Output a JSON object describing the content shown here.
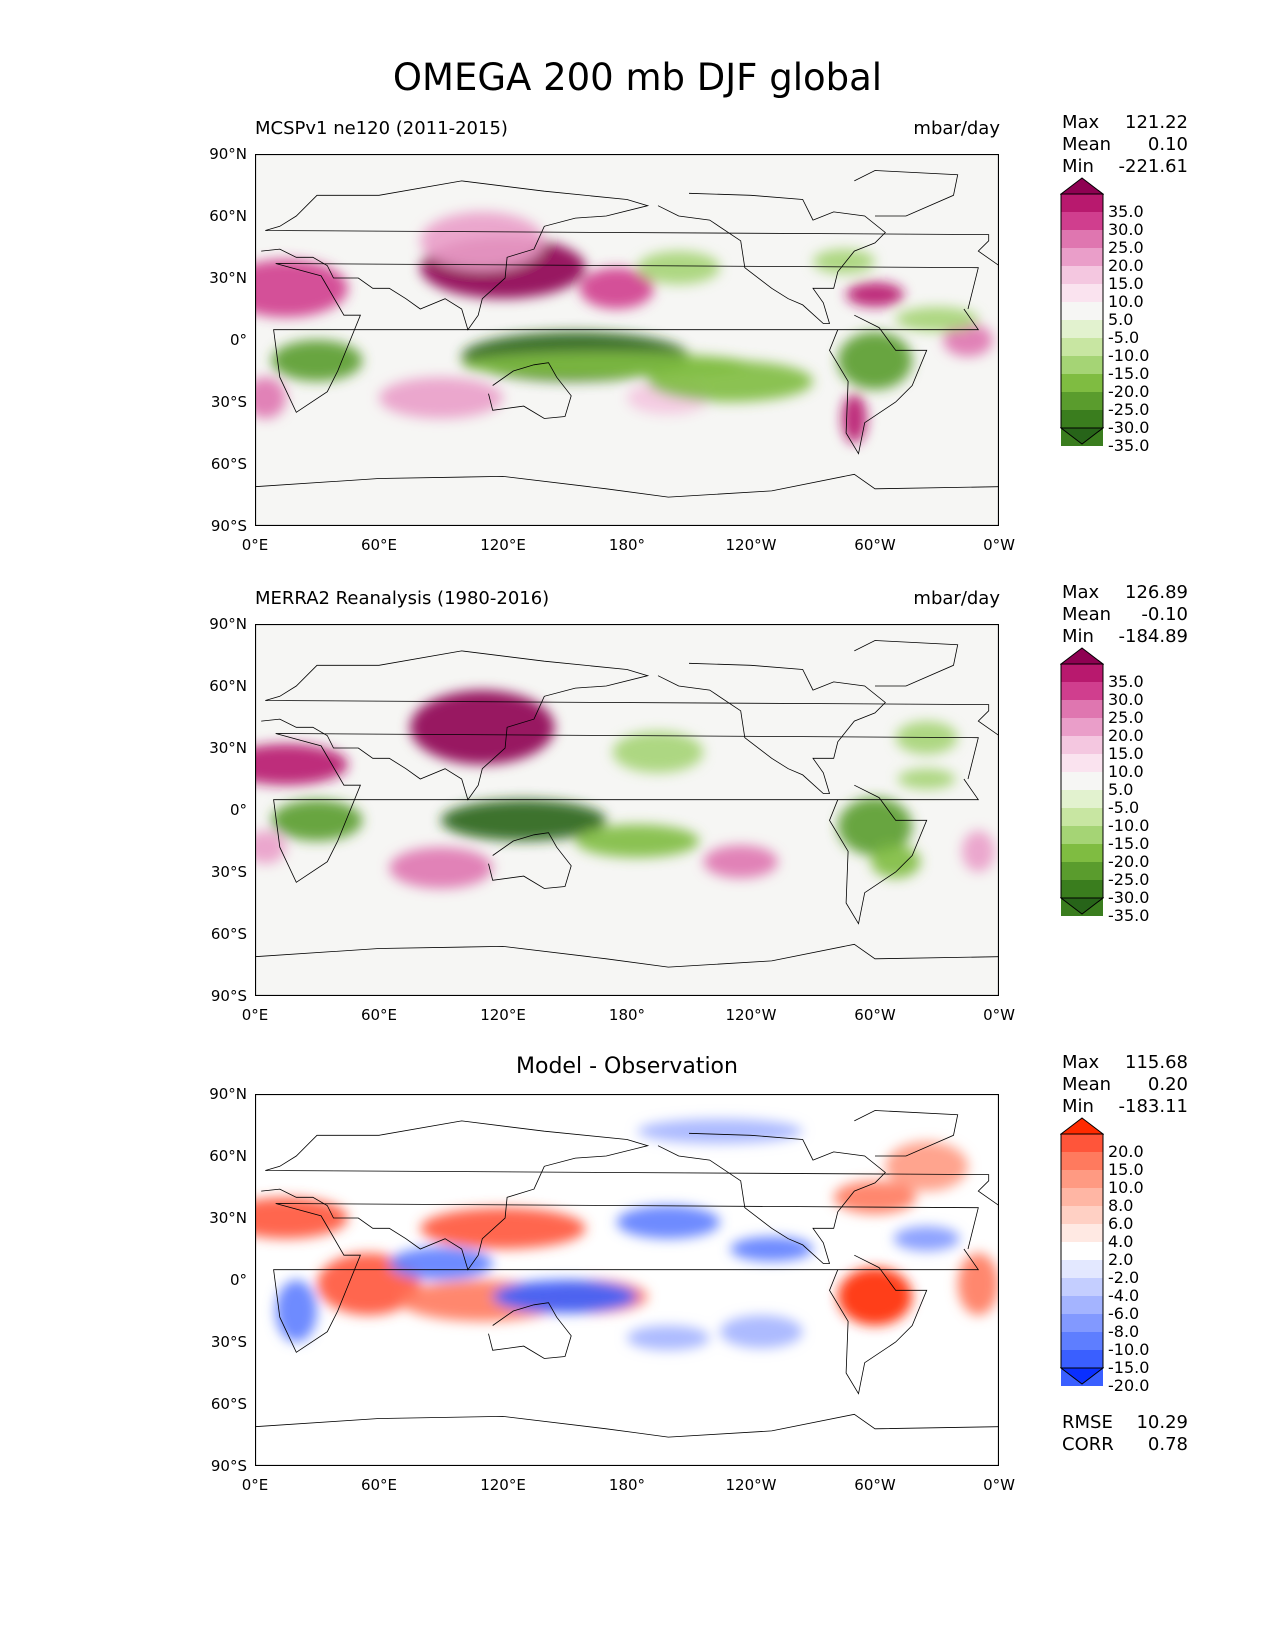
{
  "figure": {
    "title": "OMEGA 200 mb DJF global"
  },
  "axes": {
    "lat_ticks": [
      "90°N",
      "60°N",
      "30°N",
      "0°",
      "30°S",
      "60°S",
      "90°S"
    ],
    "lon_ticks": [
      "0°E",
      "60°E",
      "120°E",
      "180°",
      "120°W",
      "60°W",
      "0°W"
    ]
  },
  "panels": [
    {
      "title_left": "MCSPv1 ne120 (2011-2015)",
      "title_right": "mbar/day",
      "title_center": "",
      "stats": {
        "max_label": "Max",
        "max": "121.22",
        "mean_label": "Mean",
        "mean": "0.10",
        "min_label": "Min",
        "min": "-221.61"
      },
      "colorbar_levels": [
        "35.0",
        "30.0",
        "25.0",
        "20.0",
        "15.0",
        "10.0",
        "5.0",
        "-5.0",
        "-10.0",
        "-15.0",
        "-20.0",
        "-25.0",
        "-30.0",
        "-35.0"
      ],
      "colormap": "PiYG_r"
    },
    {
      "title_left": "MERRA2 Reanalysis (1980-2016)",
      "title_right": "mbar/day",
      "title_center": "",
      "stats": {
        "max_label": "Max",
        "max": "126.89",
        "mean_label": "Mean",
        "mean": "-0.10",
        "min_label": "Min",
        "min": "-184.89"
      },
      "colorbar_levels": [
        "35.0",
        "30.0",
        "25.0",
        "20.0",
        "15.0",
        "10.0",
        "5.0",
        "-5.0",
        "-10.0",
        "-15.0",
        "-20.0",
        "-25.0",
        "-30.0",
        "-35.0"
      ],
      "colormap": "PiYG_r"
    },
    {
      "title_left": "",
      "title_right": "",
      "title_center": "Model - Observation",
      "stats": {
        "max_label": "Max",
        "max": "115.68",
        "mean_label": "Mean",
        "mean": "0.20",
        "min_label": "Min",
        "min": "-183.11"
      },
      "colorbar_levels": [
        "20.0",
        "15.0",
        "10.0",
        "8.0",
        "6.0",
        "4.0",
        "2.0",
        "-2.0",
        "-4.0",
        "-6.0",
        "-8.0",
        "-10.0",
        "-15.0",
        "-20.0"
      ],
      "colormap": "bwr",
      "metrics": {
        "rmse_label": "RMSE",
        "rmse": "10.29",
        "corr_label": "CORR",
        "corr": "0.78"
      }
    }
  ],
  "chart_data": [
    {
      "type": "heatmap",
      "title": "MCSPv1 ne120 (2011-2015)",
      "units": "mbar/day",
      "xlim": [
        0,
        360
      ],
      "ylim": [
        -90,
        90
      ],
      "levels": [
        -35,
        -30,
        -25,
        -20,
        -15,
        -10,
        -5,
        5,
        10,
        15,
        20,
        25,
        30,
        35
      ],
      "stats": {
        "max": 121.22,
        "mean": 0.1,
        "min": -221.61
      }
    },
    {
      "type": "heatmap",
      "title": "MERRA2 Reanalysis (1980-2016)",
      "units": "mbar/day",
      "xlim": [
        0,
        360
      ],
      "ylim": [
        -90,
        90
      ],
      "levels": [
        -35,
        -30,
        -25,
        -20,
        -15,
        -10,
        -5,
        5,
        10,
        15,
        20,
        25,
        30,
        35
      ],
      "stats": {
        "max": 126.89,
        "mean": -0.1,
        "min": -184.89
      }
    },
    {
      "type": "heatmap",
      "title": "Model - Observation",
      "xlim": [
        0,
        360
      ],
      "ylim": [
        -90,
        90
      ],
      "levels": [
        -20,
        -15,
        -10,
        -8,
        -6,
        -4,
        -2,
        2,
        4,
        6,
        8,
        10,
        15,
        20
      ],
      "stats": {
        "max": 115.68,
        "mean": 0.2,
        "min": -183.11
      },
      "rmse": 10.29,
      "corr": 0.78
    }
  ]
}
